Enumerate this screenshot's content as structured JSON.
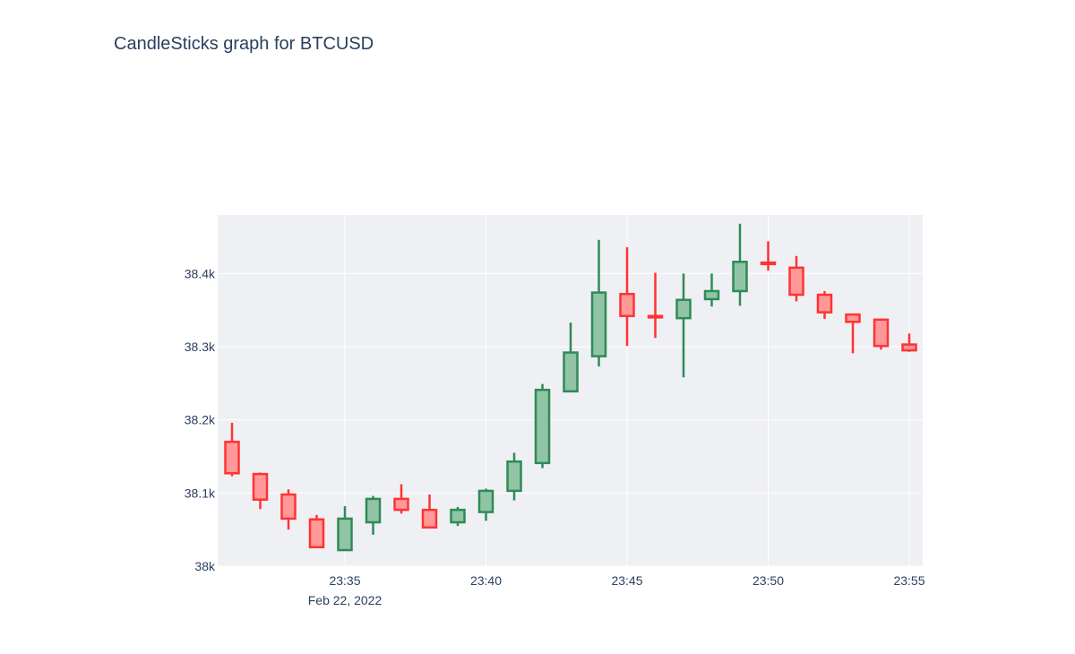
{
  "chart_data": {
    "type": "candlestick",
    "title": "CandleSticks graph for BTCUSD",
    "symbol": "BTCUSD",
    "date_label": "Feb 22, 2022",
    "increasing_color": "#2e8b57",
    "decreasing_color": "#ff3333",
    "increasing_fill": "#91c4a5",
    "decreasing_fill": "#ff9999",
    "background_color": "#eff0f4",
    "grid_color": "#ffffff",
    "x_range": [
      "23:31",
      "23:55"
    ],
    "y_range": [
      38000,
      38480
    ],
    "x_ticks": [
      "23:35",
      "23:40",
      "23:45",
      "23:50",
      "23:55"
    ],
    "y_ticks": [
      {
        "value": 38000,
        "label": "38k"
      },
      {
        "value": 38100,
        "label": "38.1k"
      },
      {
        "value": 38200,
        "label": "38.2k"
      },
      {
        "value": 38300,
        "label": "38.3k"
      },
      {
        "value": 38400,
        "label": "38.4k"
      }
    ],
    "candles": [
      {
        "time": "23:31",
        "open": 38170,
        "high": 38196,
        "low": 38123,
        "close": 38127
      },
      {
        "time": "23:32",
        "open": 38126,
        "high": 38128,
        "low": 38078,
        "close": 38091
      },
      {
        "time": "23:33",
        "open": 38098,
        "high": 38105,
        "low": 38050,
        "close": 38065
      },
      {
        "time": "23:34",
        "open": 38064,
        "high": 38070,
        "low": 38026,
        "close": 38026
      },
      {
        "time": "23:35",
        "open": 38022,
        "high": 38082,
        "low": 38022,
        "close": 38065
      },
      {
        "time": "23:36",
        "open": 38060,
        "high": 38096,
        "low": 38043,
        "close": 38092
      },
      {
        "time": "23:37",
        "open": 38092,
        "high": 38112,
        "low": 38072,
        "close": 38077
      },
      {
        "time": "23:38",
        "open": 38077,
        "high": 38098,
        "low": 38052,
        "close": 38053
      },
      {
        "time": "23:39",
        "open": 38060,
        "high": 38081,
        "low": 38055,
        "close": 38077
      },
      {
        "time": "23:40",
        "open": 38074,
        "high": 38106,
        "low": 38062,
        "close": 38103
      },
      {
        "time": "23:41",
        "open": 38103,
        "high": 38155,
        "low": 38090,
        "close": 38143
      },
      {
        "time": "23:42",
        "open": 38141,
        "high": 38249,
        "low": 38134,
        "close": 38241
      },
      {
        "time": "23:43",
        "open": 38239,
        "high": 38333,
        "low": 38239,
        "close": 38292
      },
      {
        "time": "23:44",
        "open": 38287,
        "high": 38446,
        "low": 38273,
        "close": 38374
      },
      {
        "time": "23:45",
        "open": 38372,
        "high": 38436,
        "low": 38301,
        "close": 38342
      },
      {
        "time": "23:46",
        "open": 38342,
        "high": 38401,
        "low": 38312,
        "close": 38340
      },
      {
        "time": "23:47",
        "open": 38339,
        "high": 38400,
        "low": 38258,
        "close": 38364
      },
      {
        "time": "23:48",
        "open": 38365,
        "high": 38400,
        "low": 38355,
        "close": 38376
      },
      {
        "time": "23:49",
        "open": 38376,
        "high": 38468,
        "low": 38356,
        "close": 38416
      },
      {
        "time": "23:50",
        "open": 38415,
        "high": 38444,
        "low": 38404,
        "close": 38413
      },
      {
        "time": "23:51",
        "open": 38408,
        "high": 38424,
        "low": 38362,
        "close": 38371
      },
      {
        "time": "23:52",
        "open": 38371,
        "high": 38376,
        "low": 38338,
        "close": 38347
      },
      {
        "time": "23:53",
        "open": 38344,
        "high": 38344,
        "low": 38291,
        "close": 38334
      },
      {
        "time": "23:54",
        "open": 38337,
        "high": 38338,
        "low": 38296,
        "close": 38301
      },
      {
        "time": "23:55",
        "open": 38303,
        "high": 38318,
        "low": 38293,
        "close": 38295
      }
    ]
  }
}
